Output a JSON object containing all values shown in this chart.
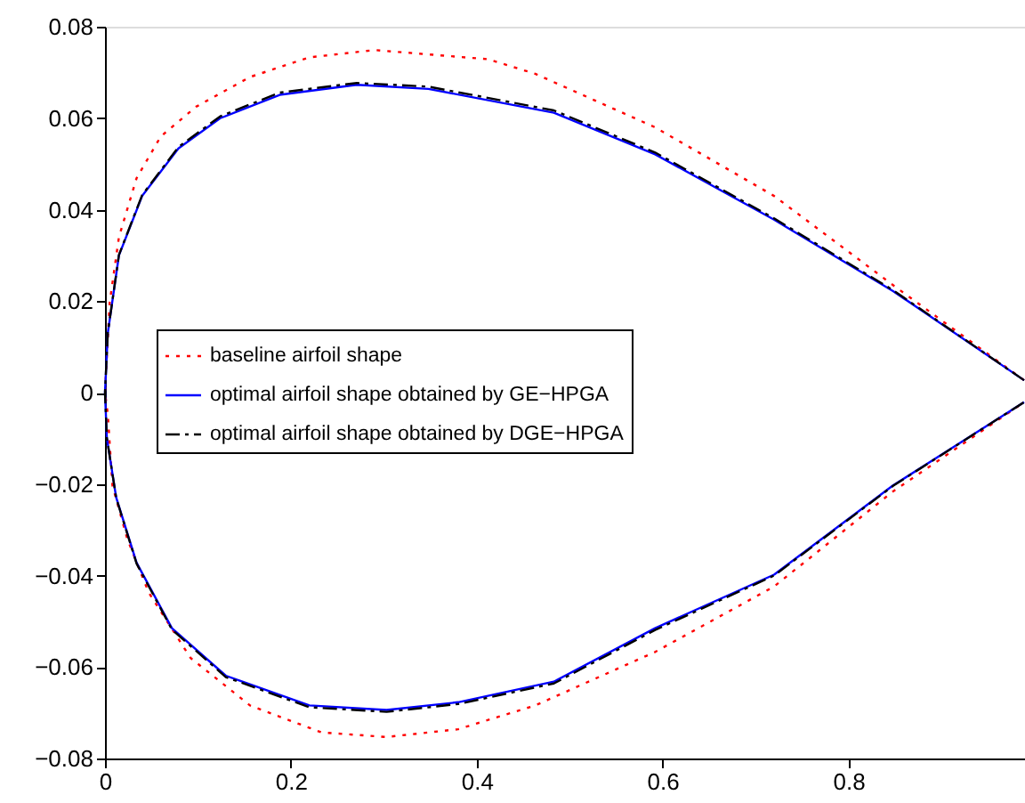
{
  "chart_data": {
    "type": "line",
    "xlim": [
      0,
      0.99
    ],
    "ylim": [
      -0.08,
      0.08
    ],
    "xticks": [
      0,
      0.2,
      0.4,
      0.6,
      0.8
    ],
    "yticks": [
      -0.08,
      -0.06,
      -0.04,
      -0.02,
      0,
      0.02,
      0.04,
      0.06,
      0.08
    ],
    "grid": false,
    "legend": "left",
    "marker": "none",
    "series": [
      {
        "name": "baseline airfoil shape",
        "color": "#ff0000",
        "line_style": "dotted",
        "x": [
          0.989,
          0.848,
          0.72,
          0.592,
          0.463,
          0.412,
          0.29,
          0.22,
          0.156,
          0.098,
          0.06,
          0.034,
          0.015,
          0.005,
          0,
          0.003,
          0.008,
          0.024,
          0.047,
          0.092,
          0.156,
          0.233,
          0.303,
          0.38,
          0.463,
          0.592,
          0.72,
          0.848,
          0.989
        ],
        "values": [
          0.0027,
          0.0235,
          0.043,
          0.058,
          0.0697,
          0.0729,
          0.0749,
          0.0733,
          0.069,
          0.0625,
          0.056,
          0.0469,
          0.034,
          0.0196,
          0,
          -0.0047,
          -0.0203,
          -0.032,
          -0.0437,
          -0.058,
          -0.0684,
          -0.0743,
          -0.0753,
          -0.0736,
          -0.0684,
          -0.0567,
          -0.0424,
          -0.0216,
          -0.0021
        ]
      },
      {
        "name": "optimal airfoil shape obtained by GE−HPGA",
        "color": "#0000ff",
        "line_style": "solid",
        "x": [
          0.989,
          0.848,
          0.72,
          0.592,
          0.483,
          0.348,
          0.271,
          0.188,
          0.124,
          0.079,
          0.04,
          0.015,
          0.003,
          0,
          0.002,
          0.012,
          0.034,
          0.072,
          0.13,
          0.22,
          0.303,
          0.38,
          0.483,
          0.592,
          0.72,
          0.848,
          0.989
        ],
        "values": [
          0.0027,
          0.0222,
          0.0378,
          0.0521,
          0.0612,
          0.0664,
          0.0673,
          0.0651,
          0.06,
          0.0534,
          0.043,
          0.03,
          0.013,
          0,
          -0.0099,
          -0.0229,
          -0.0372,
          -0.0515,
          -0.0619,
          -0.0684,
          -0.0694,
          -0.0677,
          -0.0632,
          -0.0515,
          -0.0398,
          -0.0203,
          -0.0021
        ]
      },
      {
        "name": "optimal airfoil shape obtained by DGE−HPGA",
        "color": "#000000",
        "line_style": "dashed",
        "x": [
          0.989,
          0.848,
          0.72,
          0.592,
          0.483,
          0.348,
          0.271,
          0.188,
          0.124,
          0.079,
          0.04,
          0.015,
          0.003,
          0,
          0.002,
          0.012,
          0.034,
          0.072,
          0.13,
          0.22,
          0.303,
          0.38,
          0.483,
          0.592,
          0.72,
          0.848,
          0.989
        ],
        "values": [
          0.0027,
          0.0224,
          0.0381,
          0.0525,
          0.0617,
          0.0669,
          0.0677,
          0.0656,
          0.0604,
          0.0537,
          0.0432,
          0.0301,
          0.013,
          0,
          -0.0099,
          -0.023,
          -0.0374,
          -0.0518,
          -0.0622,
          -0.0688,
          -0.0698,
          -0.0681,
          -0.0636,
          -0.0519,
          -0.04,
          -0.0204,
          -0.0021
        ]
      }
    ]
  }
}
